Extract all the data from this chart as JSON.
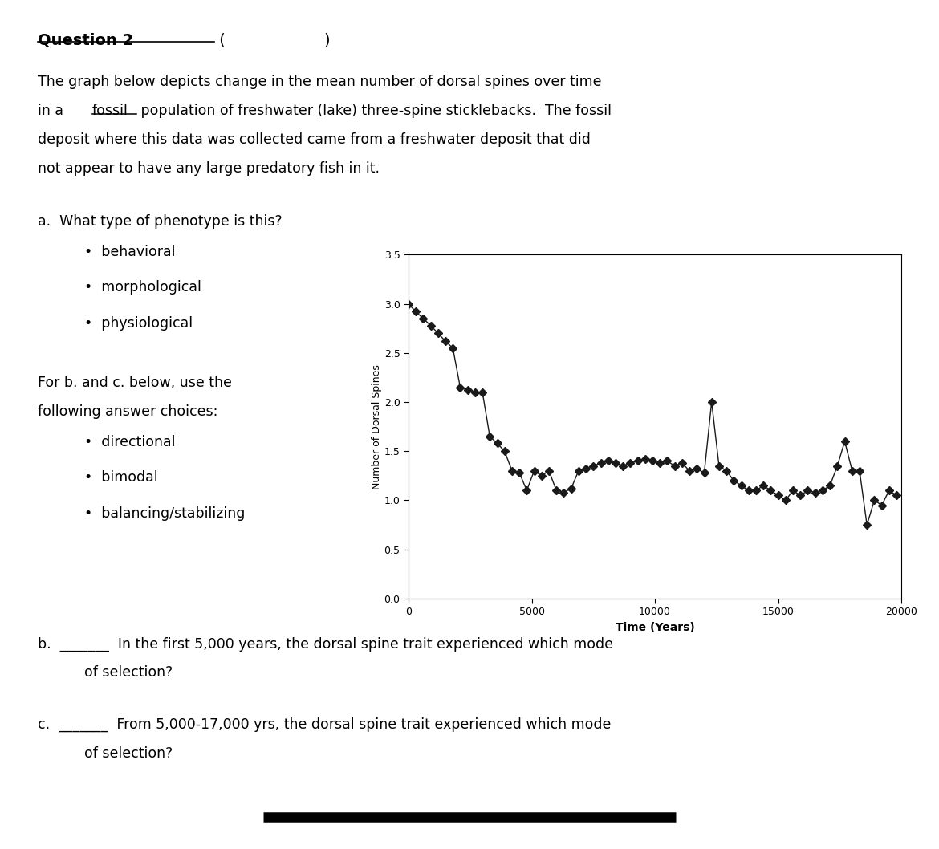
{
  "title": "",
  "xlabel": "Time (Years)",
  "ylabel": "Number of Dorsal Spines",
  "xlim": [
    0,
    20000
  ],
  "ylim": [
    0,
    3.5
  ],
  "yticks": [
    0,
    0.5,
    1,
    1.5,
    2,
    2.5,
    3,
    3.5
  ],
  "xticks": [
    0,
    5000,
    10000,
    15000,
    20000
  ],
  "time_values": [
    0,
    300,
    600,
    900,
    1200,
    1500,
    1800,
    2100,
    2400,
    2700,
    3000,
    3300,
    3600,
    3900,
    4200,
    4500,
    4800,
    5100,
    5400,
    5700,
    6000,
    6300,
    6600,
    6900,
    7200,
    7500,
    7800,
    8100,
    8400,
    8700,
    9000,
    9300,
    9600,
    9900,
    10200,
    10500,
    10800,
    11100,
    11400,
    11700,
    12000,
    12300,
    12600,
    12900,
    13200,
    13500,
    13800,
    14100,
    14400,
    14700,
    15000,
    15300,
    15600,
    15900,
    16200,
    16500,
    16800,
    17100,
    17400,
    17700,
    18000,
    18300,
    18600,
    18900,
    19200,
    19500,
    19800
  ],
  "spine_values": [
    3.0,
    2.92,
    2.85,
    2.78,
    2.7,
    2.62,
    2.55,
    2.15,
    2.12,
    2.1,
    2.1,
    1.65,
    1.58,
    1.5,
    1.3,
    1.28,
    1.1,
    1.3,
    1.25,
    1.3,
    1.1,
    1.08,
    1.12,
    1.3,
    1.32,
    1.35,
    1.38,
    1.4,
    1.38,
    1.35,
    1.38,
    1.4,
    1.42,
    1.4,
    1.38,
    1.4,
    1.35,
    1.38,
    1.3,
    1.32,
    1.28,
    2.0,
    1.35,
    1.3,
    1.2,
    1.15,
    1.1,
    1.1,
    1.15,
    1.1,
    1.05,
    1.0,
    1.1,
    1.05,
    1.1,
    1.08,
    1.1,
    1.15,
    1.35,
    1.6,
    1.3,
    1.3,
    0.75,
    1.0,
    0.95,
    1.1,
    1.05
  ],
  "marker": "D",
  "markersize": 5,
  "linewidth": 1.0,
  "line_color": "#1a1a1a",
  "marker_facecolor": "#1a1a1a",
  "marker_edgecolor": "#1a1a1a",
  "background_color": "#ffffff",
  "part_a_choices": [
    "behavioral",
    "morphological",
    "physiological"
  ],
  "bc_choices": [
    "directional",
    "bimodal",
    "balancing/stabilizing"
  ]
}
